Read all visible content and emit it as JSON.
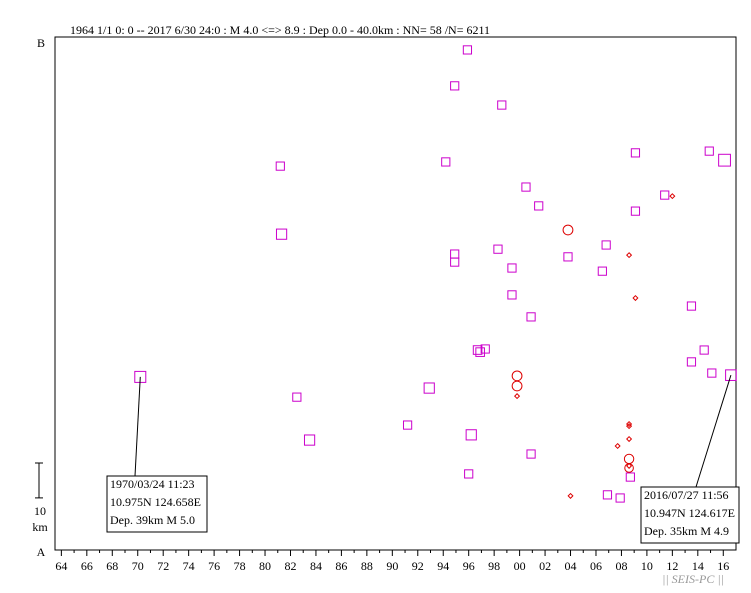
{
  "chart_data": {
    "type": "scatter",
    "title": "1964 1/1 0: 0 -- 2017 6/30 24:0  : M 4.0 <=> 8.9   :  Dep 0.0 - 40.0km :  NN= 58 /N= 6211",
    "xlim": [
      1963.5,
      2017
    ],
    "ylim": [
      0,
      147
    ],
    "xticks": [
      {
        "value": 1964,
        "label": "64"
      },
      {
        "value": 1966,
        "label": "66"
      },
      {
        "value": 1968,
        "label": "68"
      },
      {
        "value": 1970,
        "label": "70"
      },
      {
        "value": 1972,
        "label": "72"
      },
      {
        "value": 1974,
        "label": "74"
      },
      {
        "value": 1976,
        "label": "76"
      },
      {
        "value": 1978,
        "label": "78"
      },
      {
        "value": 1980,
        "label": "80"
      },
      {
        "value": 1982,
        "label": "82"
      },
      {
        "value": 1984,
        "label": "84"
      },
      {
        "value": 1986,
        "label": "86"
      },
      {
        "value": 1988,
        "label": "88"
      },
      {
        "value": 1990,
        "label": "90"
      },
      {
        "value": 1992,
        "label": "92"
      },
      {
        "value": 1994,
        "label": "94"
      },
      {
        "value": 1996,
        "label": "96"
      },
      {
        "value": 1998,
        "label": "98"
      },
      {
        "value": 2000,
        "label": "00"
      },
      {
        "value": 2002,
        "label": "02"
      },
      {
        "value": 2004,
        "label": "04"
      },
      {
        "value": 2006,
        "label": "06"
      },
      {
        "value": 2008,
        "label": "08"
      },
      {
        "value": 2010,
        "label": "10"
      },
      {
        "value": 2012,
        "label": "12"
      },
      {
        "value": 2014,
        "label": "14"
      },
      {
        "value": 2016,
        "label": "16"
      }
    ],
    "y_end_labels": {
      "bottom": "A",
      "top": "B"
    },
    "scale_bar": {
      "value": 10,
      "unit": "km"
    },
    "series": [
      {
        "marker": "square",
        "color": "#cc00cc",
        "x": [
          1995.9,
          1994.9,
          1998.6,
          1981.2,
          1994.2,
          2009.1,
          2014.9,
          2016.1,
          2000.5,
          2011.4,
          2001.5,
          2009.1,
          1981.3,
          1994.9,
          1994.9,
          1998.3,
          2003.8,
          2006.8,
          1999.4,
          2006.5,
          1999.4,
          2000.9,
          2013.5,
          1996.7,
          1996.9,
          1997.3,
          2014.5,
          2013.5,
          2015.1,
          2016.6,
          1970.2,
          1992.9,
          1982.5,
          1991.2,
          1983.5,
          1996.2,
          1996.0,
          2000.9,
          2006.9,
          2007.9,
          2008.7
        ],
        "values": [
          143.3,
          133.0,
          127.5,
          110.0,
          111.2,
          113.8,
          114.3,
          111.7,
          104.0,
          101.7,
          98.6,
          97.1,
          90.5,
          84.8,
          82.5,
          86.2,
          84.0,
          87.4,
          80.8,
          79.9,
          73.1,
          66.8,
          69.9,
          57.3,
          56.7,
          57.6,
          57.3,
          53.9,
          50.7,
          50.1,
          49.6,
          46.4,
          43.8,
          35.8,
          31.5,
          33.0,
          21.8,
          27.5,
          15.8,
          14.9,
          20.9
        ],
        "sizes": [
          4.3,
          4.3,
          4.3,
          4.3,
          4.3,
          4.3,
          4.3,
          5.2,
          4.3,
          4.3,
          4.3,
          4.3,
          4.8,
          4.3,
          4.3,
          4.3,
          4.3,
          4.3,
          4.3,
          4.3,
          4.3,
          4.3,
          4.3,
          4.4,
          4.4,
          4.3,
          4.3,
          4.3,
          4.3,
          4.9,
          5.0,
          4.8,
          4.3,
          4.3,
          4.8,
          4.8,
          4.3,
          4.3,
          4.3,
          4.3,
          4.3
        ]
      },
      {
        "marker": "diamond",
        "color": "#dd0000",
        "x": [
          2012.0,
          2008.6,
          2009.1,
          1999.8,
          2008.6,
          2008.6,
          2008.6,
          2007.7,
          2008.6,
          2004.0
        ],
        "values": [
          101.4,
          84.5,
          72.2,
          44.1,
          36.1,
          35.5,
          31.8,
          29.8,
          24.1,
          15.5
        ],
        "sizes": [
          4.2,
          4.2,
          4.2,
          4.2,
          4.2,
          4.2,
          4.2,
          4.2,
          4.2,
          4.2
        ]
      },
      {
        "marker": "circle",
        "color": "#dd0000",
        "x": [
          2003.8,
          1999.8,
          1999.8,
          2008.6,
          2008.6
        ],
        "values": [
          91.7,
          49.9,
          47.0,
          26.1,
          23.5
        ],
        "sizes": [
          4.7,
          4.7,
          4.7,
          4.6,
          4.4
        ]
      }
    ],
    "annotations": [
      {
        "lines": [
          "1970/03/24 11:23",
          "10.975N  124.658E",
          "Dep. 39km   M 5.0"
        ]
      },
      {
        "lines": [
          "2016/07/27 11:56",
          "10.947N  124.617E",
          "Dep. 35km   M 4.9"
        ]
      }
    ],
    "watermark": "|| SEIS-PC ||"
  }
}
